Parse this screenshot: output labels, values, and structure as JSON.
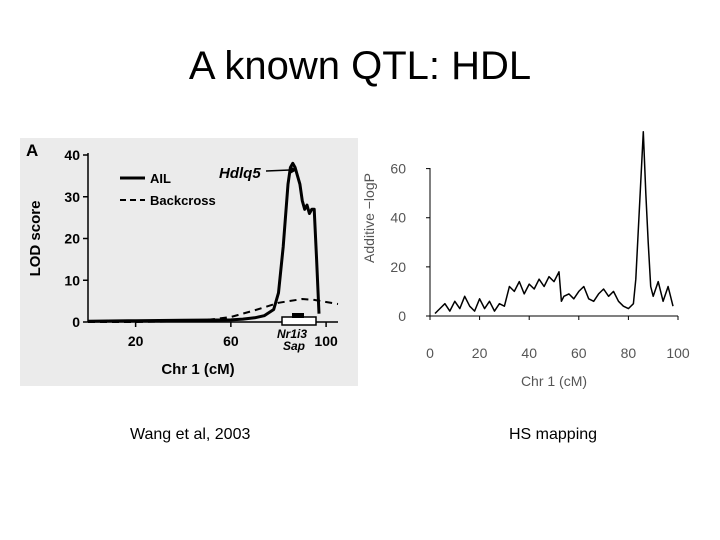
{
  "slide": {
    "title": "A known QTL: HDL",
    "captions": {
      "left": "Wang et al, 2003",
      "right": "HS mapping"
    }
  },
  "chart_data": [
    {
      "type": "line",
      "panel_label": "A",
      "xlabel": "Chr 1 (cM)",
      "ylabel": "LOD score",
      "xlim": [
        0,
        105
      ],
      "ylim": [
        0,
        40
      ],
      "xticks": [
        20,
        60,
        100
      ],
      "yticks": [
        0,
        10,
        20,
        30,
        40
      ],
      "grid": false,
      "legend": "top-left",
      "series": [
        {
          "name": "AIL",
          "style": "solid",
          "x": [
            0,
            20,
            40,
            60,
            65,
            70,
            74,
            78,
            80,
            82,
            84,
            85,
            86,
            87,
            88,
            89,
            90,
            91,
            92,
            93,
            94,
            95,
            96,
            97
          ],
          "y": [
            0.2,
            0.3,
            0.4,
            0.5,
            0.7,
            1.0,
            1.5,
            3,
            7,
            18,
            33,
            37,
            38,
            37,
            35,
            33,
            29,
            27,
            28,
            26,
            27,
            27,
            15,
            2
          ]
        },
        {
          "name": "Backcross",
          "style": "dashed",
          "x": [
            0,
            20,
            40,
            50,
            60,
            70,
            80,
            90,
            95,
            100,
            105
          ],
          "y": [
            0,
            0,
            0.2,
            0.5,
            1.2,
            2.8,
            4.6,
            5.5,
            5.3,
            4.8,
            4.3
          ]
        }
      ],
      "annotations": [
        {
          "text": "Hdlq5",
          "x": 76,
          "y": 39
        },
        {
          "text": "Nr1i3",
          "x": 88,
          "y": -2
        },
        {
          "text": "Sap",
          "x": 88,
          "y": -5
        }
      ]
    },
    {
      "type": "line",
      "xlabel": "Chr 1 (cM)",
      "ylabel": "Additive −logP",
      "xlim": [
        0,
        100
      ],
      "ylim": [
        0,
        75
      ],
      "xticks": [
        0,
        20,
        40,
        60,
        80,
        100
      ],
      "yticks": [
        0,
        20,
        40,
        60
      ],
      "grid": false,
      "series": [
        {
          "x": [
            2,
            4,
            6,
            8,
            10,
            12,
            14,
            16,
            18,
            20,
            22,
            24,
            26,
            28,
            30,
            32,
            34,
            36,
            38,
            40,
            42,
            44,
            46,
            48,
            50,
            52,
            53,
            54,
            56,
            58,
            60,
            62,
            64,
            66,
            68,
            70,
            72,
            74,
            76,
            78,
            80,
            82,
            83,
            84,
            85,
            86,
            87,
            88,
            89,
            90,
            92,
            94,
            96,
            98
          ],
          "y": [
            1,
            3,
            5,
            2,
            6,
            3,
            8,
            4,
            2,
            7,
            3,
            6,
            2,
            5,
            4,
            12,
            10,
            14,
            9,
            13,
            11,
            15,
            12,
            16,
            14,
            18,
            6,
            8,
            9,
            7,
            10,
            12,
            7,
            6,
            9,
            11,
            8,
            10,
            6,
            4,
            3,
            5,
            15,
            35,
            55,
            75,
            50,
            30,
            12,
            8,
            14,
            6,
            12,
            4
          ]
        }
      ]
    }
  ]
}
